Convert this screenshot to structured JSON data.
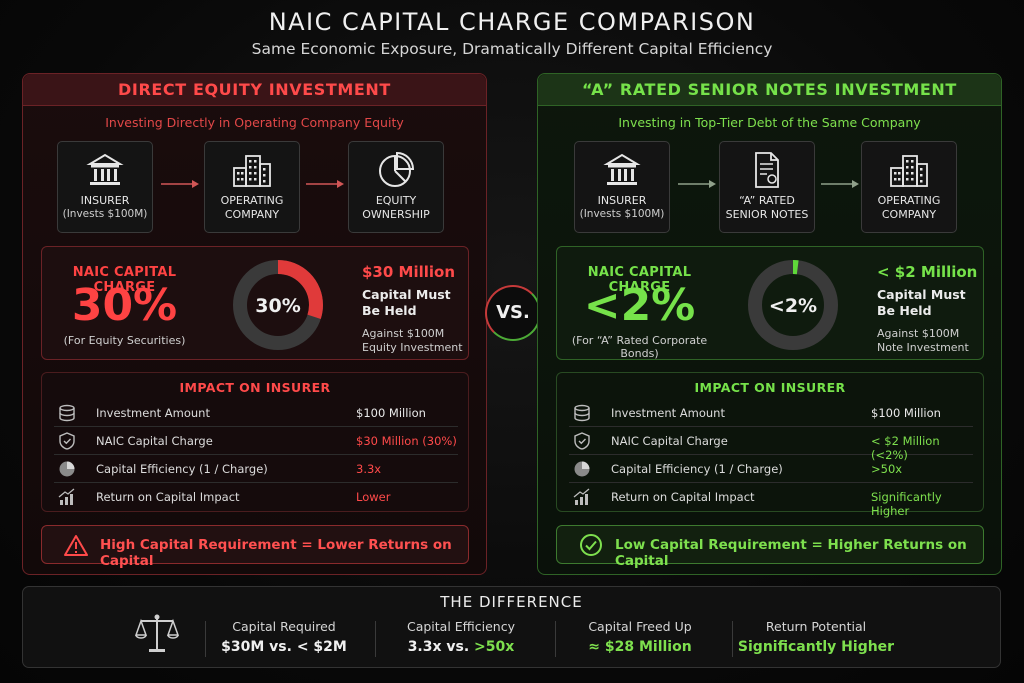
{
  "title": "NAIC CAPITAL CHARGE COMPARISON",
  "subtitle": "Same Economic Exposure, Dramatically Different Capital Efficiency",
  "vs": "VS.",
  "colors": {
    "red": "#ff4a4a",
    "green": "#76e24a"
  },
  "left": {
    "header": "DIRECT EQUITY INVESTMENT",
    "sub": "Investing Directly in Operating Company Equity",
    "flow": [
      {
        "icon": "bank-icon",
        "line1": "INSURER",
        "line2": "(Invests $100M)"
      },
      {
        "icon": "buildings-icon",
        "line1": "OPERATING",
        "line2": "COMPANY"
      },
      {
        "icon": "pie-chart-icon",
        "line1": "EQUITY",
        "line2": "OWNERSHIP"
      }
    ],
    "charge": {
      "label": "NAIC CAPITAL CHARGE",
      "value": "30%",
      "note": "(For Equity Securities)",
      "donut_label": "30%",
      "donut_fraction": 0.3,
      "amount": "$30 Million",
      "held1": "Capital Must",
      "held2": "Be Held",
      "against1": "Against $100M",
      "against2": "Equity Investment"
    },
    "impact": {
      "title": "IMPACT ON INSURER",
      "rows": [
        {
          "icon": "database-icon",
          "key": "Investment Amount",
          "value": "$100 Million"
        },
        {
          "icon": "shield-icon",
          "key": "NAIC Capital Charge",
          "value": "$30 Million (30%)"
        },
        {
          "icon": "pie-icon",
          "key": "Capital Efficiency (1 / Charge)",
          "value": "3.3x"
        },
        {
          "icon": "growth-chart-icon",
          "key": "Return on Capital Impact",
          "value": "Lower"
        }
      ]
    },
    "banner": "High Capital Requirement = Lower Returns on Capital"
  },
  "right": {
    "header": "“A” RATED SENIOR NOTES INVESTMENT",
    "sub": "Investing in Top-Tier Debt of the Same Company",
    "flow": [
      {
        "icon": "bank-icon",
        "line1": "INSURER",
        "line2": "(Invests $100M)"
      },
      {
        "icon": "document-icon",
        "line1": "“A” RATED",
        "line2": "SENIOR NOTES"
      },
      {
        "icon": "buildings-icon",
        "line1": "OPERATING",
        "line2": "COMPANY"
      }
    ],
    "charge": {
      "label": "NAIC CAPITAL CHARGE",
      "value": "<2%",
      "note": "(For “A” Rated Corporate Bonds)",
      "donut_label": "<2%",
      "donut_fraction": 0.02,
      "amount": "< $2 Million",
      "held1": "Capital Must",
      "held2": "Be Held",
      "against1": "Against $100M",
      "against2": "Note Investment"
    },
    "impact": {
      "title": "IMPACT ON INSURER",
      "rows": [
        {
          "icon": "database-icon",
          "key": "Investment Amount",
          "value": "$100 Million"
        },
        {
          "icon": "shield-icon",
          "key": "NAIC Capital Charge",
          "value": "< $2 Million (<2%)"
        },
        {
          "icon": "pie-icon",
          "key": "Capital Efficiency (1 / Charge)",
          "value": ">50x"
        },
        {
          "icon": "growth-chart-icon",
          "key": "Return on Capital Impact",
          "value": "Significantly Higher"
        }
      ]
    },
    "banner": "Low Capital Requirement = Higher Returns on Capital"
  },
  "difference": {
    "title": "THE DIFFERENCE",
    "columns": [
      {
        "label": "Capital Required",
        "value_a": "$30M vs. < $2M",
        "value_b": ""
      },
      {
        "label": "Capital Efficiency",
        "value_a": "3.3x vs. ",
        "value_b": ">50x"
      },
      {
        "label": "Capital Freed Up",
        "value_a": "",
        "value_b": "≈ $28 Million"
      },
      {
        "label": "Return Potential",
        "value_a": "",
        "value_b": "Significantly Higher"
      }
    ]
  }
}
